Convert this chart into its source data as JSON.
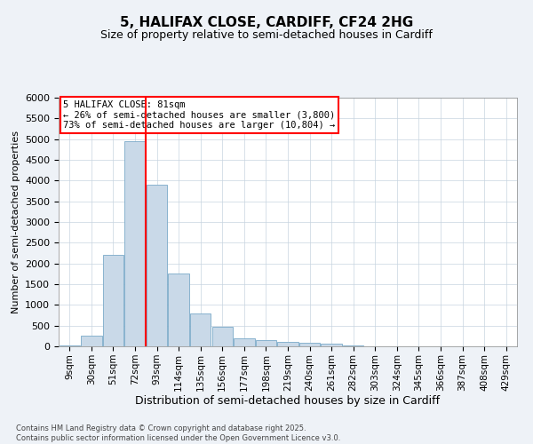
{
  "title": "5, HALIFAX CLOSE, CARDIFF, CF24 2HG",
  "subtitle": "Size of property relative to semi-detached houses in Cardiff",
  "xlabel": "Distribution of semi-detached houses by size in Cardiff",
  "ylabel": "Number of semi-detached properties",
  "categories": [
    "9sqm",
    "30sqm",
    "51sqm",
    "72sqm",
    "93sqm",
    "114sqm",
    "135sqm",
    "156sqm",
    "177sqm",
    "198sqm",
    "219sqm",
    "240sqm",
    "261sqm",
    "282sqm",
    "303sqm",
    "324sqm",
    "345sqm",
    "366sqm",
    "387sqm",
    "408sqm",
    "429sqm"
  ],
  "values": [
    30,
    250,
    2200,
    4950,
    3900,
    1750,
    800,
    480,
    200,
    160,
    110,
    80,
    55,
    30,
    10,
    5,
    3,
    2,
    1,
    1,
    0
  ],
  "bar_color": "#c9d9e8",
  "bar_edge_color": "#7aaac8",
  "vline_x_index": 3,
  "vline_color": "red",
  "annotation_title": "5 HALIFAX CLOSE: 81sqm",
  "annotation_line1": "← 26% of semi-detached houses are smaller (3,800)",
  "annotation_line2": "73% of semi-detached houses are larger (10,804) →",
  "ylim": [
    0,
    6000
  ],
  "yticks": [
    0,
    500,
    1000,
    1500,
    2000,
    2500,
    3000,
    3500,
    4000,
    4500,
    5000,
    5500,
    6000
  ],
  "footer1": "Contains HM Land Registry data © Crown copyright and database right 2025.",
  "footer2": "Contains public sector information licensed under the Open Government Licence v3.0.",
  "bg_color": "#eef2f7",
  "plot_bg_color": "#ffffff",
  "grid_color": "#c8d4e0"
}
